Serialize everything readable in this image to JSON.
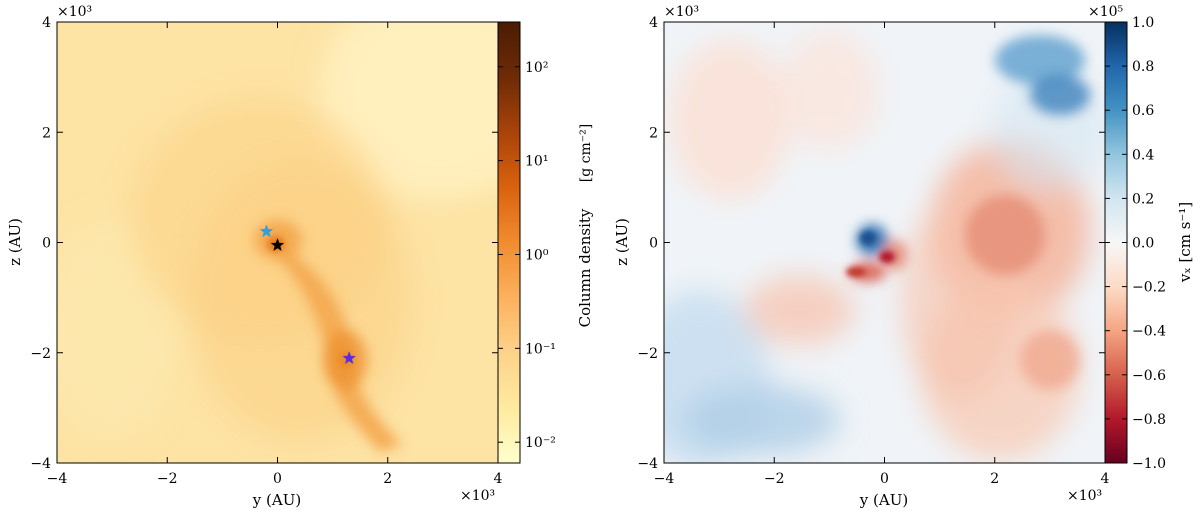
{
  "chart_data": [
    {
      "type": "heatmap",
      "xlabel": "y  (AU)",
      "ylabel": "z  (AU)",
      "x_multiplier": "×10³",
      "y_multiplier": "×10³",
      "xlim": [
        -4000,
        4000
      ],
      "ylim": [
        -4000,
        4000
      ],
      "x_ticks": [
        -4000,
        -2000,
        0,
        2000,
        4000
      ],
      "x_tick_labels": [
        "−4",
        "−2",
        "0",
        "2",
        "4"
      ],
      "y_ticks": [
        -4000,
        -2000,
        0,
        2000,
        4000
      ],
      "y_tick_labels": [
        "−4",
        "−2",
        "0",
        "2",
        "4"
      ],
      "colormap": "YlOrBr",
      "colorbar": {
        "label": "Column density",
        "units": "[g cm⁻²]",
        "scale": "log",
        "range": [
          0.006,
          300
        ],
        "ticks": [
          0.01,
          0.1,
          1,
          10,
          100
        ],
        "tick_labels": [
          "10⁻²",
          "10⁻¹",
          "10⁰",
          "10¹",
          "10²"
        ],
        "colors": [
          "#ffffcc",
          "#feeaa0",
          "#fdd38a",
          "#fcb15e",
          "#f18c2f",
          "#d9620e",
          "#a9430a",
          "#6e2b06",
          "#4a1c04"
        ]
      },
      "markers": [
        {
          "x": -200,
          "y": 200,
          "color": "#2aa3e0"
        },
        {
          "x": 0,
          "y": -50,
          "color": "#000000"
        },
        {
          "x": 1300,
          "y": -2100,
          "color": "#5a2ddc"
        }
      ]
    },
    {
      "type": "heatmap",
      "xlabel": "y  (AU)",
      "ylabel": "z  (AU)",
      "x_multiplier": "×10³",
      "y_multiplier": "×10³",
      "xlim": [
        -4000,
        4000
      ],
      "ylim": [
        -4000,
        4000
      ],
      "x_ticks": [
        -4000,
        -2000,
        0,
        2000,
        4000
      ],
      "x_tick_labels": [
        "−4",
        "−2",
        "0",
        "2",
        "4"
      ],
      "y_ticks": [
        -4000,
        -2000,
        0,
        2000,
        4000
      ],
      "y_tick_labels": [
        "−4",
        "−2",
        "0",
        "2",
        "4"
      ],
      "colormap": "RdBu",
      "colorbar": {
        "label": "vₓ  [cm s⁻¹]",
        "multiplier": "×10⁵",
        "scale": "linear",
        "range": [
          -1.0,
          1.0
        ],
        "ticks": [
          -1.0,
          -0.8,
          -0.6,
          -0.4,
          -0.2,
          0.0,
          0.2,
          0.4,
          0.6,
          0.8,
          1.0
        ],
        "tick_labels": [
          "−1.0",
          "−0.8",
          "−0.6",
          "−0.4",
          "−0.2",
          "0.0",
          "0.2",
          "0.4",
          "0.6",
          "0.8",
          "1.0"
        ],
        "colors": [
          "#67001f",
          "#b2182b",
          "#d6604d",
          "#f4a582",
          "#fddbc7",
          "#f7f7f7",
          "#d1e5f0",
          "#92c5de",
          "#4393c3",
          "#2166ac",
          "#053061"
        ]
      }
    }
  ]
}
